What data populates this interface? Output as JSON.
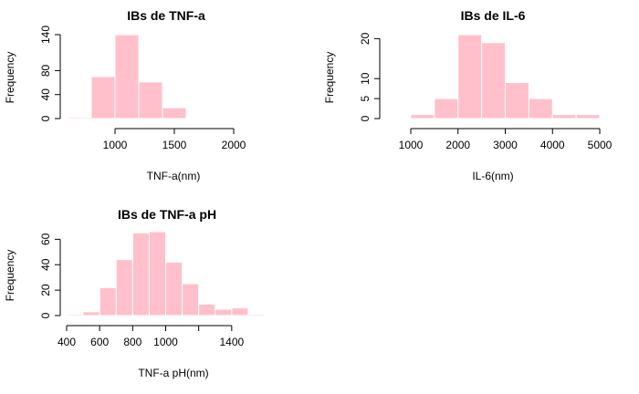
{
  "chart_data": [
    {
      "type": "bar",
      "title": "IBs de TNF-a",
      "xlabel": "TNF-a(nm)",
      "ylabel": "Frequency",
      "bar_color": "#FFC0CB",
      "bins": [
        {
          "x0": 600,
          "x1": 800,
          "count": 2
        },
        {
          "x0": 800,
          "x1": 1000,
          "count": 70
        },
        {
          "x0": 1000,
          "x1": 1200,
          "count": 140
        },
        {
          "x0": 1200,
          "x1": 1400,
          "count": 61
        },
        {
          "x0": 1400,
          "x1": 1600,
          "count": 18
        }
      ],
      "x_ticks": [
        1000,
        1500,
        2000
      ],
      "y_ticks": [
        0,
        40,
        80,
        140
      ]
    },
    {
      "type": "bar",
      "title": "IBs de IL-6",
      "xlabel": "IL-6(nm)",
      "ylabel": "Frequency",
      "bar_color": "#FFC0CB",
      "bins": [
        {
          "x0": 1000,
          "x1": 1500,
          "count": 1
        },
        {
          "x0": 1500,
          "x1": 2000,
          "count": 5
        },
        {
          "x0": 2000,
          "x1": 2500,
          "count": 21
        },
        {
          "x0": 2500,
          "x1": 3000,
          "count": 19
        },
        {
          "x0": 3000,
          "x1": 3500,
          "count": 9
        },
        {
          "x0": 3500,
          "x1": 4000,
          "count": 5
        },
        {
          "x0": 4000,
          "x1": 4500,
          "count": 1
        },
        {
          "x0": 4500,
          "x1": 5000,
          "count": 1
        }
      ],
      "x_ticks": [
        1000,
        2000,
        3000,
        4000,
        5000
      ],
      "y_ticks": [
        0,
        5,
        10,
        20
      ]
    },
    {
      "type": "bar",
      "title": "IBs de TNF-a pH",
      "xlabel": "TNF-a pH(nm)",
      "ylabel": "Frequency",
      "bar_color": "#FFC0CB",
      "bins": [
        {
          "x0": 400,
          "x1": 500,
          "count": 1
        },
        {
          "x0": 500,
          "x1": 600,
          "count": 3
        },
        {
          "x0": 600,
          "x1": 700,
          "count": 22
        },
        {
          "x0": 700,
          "x1": 800,
          "count": 44
        },
        {
          "x0": 800,
          "x1": 900,
          "count": 65
        },
        {
          "x0": 900,
          "x1": 1000,
          "count": 66
        },
        {
          "x0": 1000,
          "x1": 1100,
          "count": 42
        },
        {
          "x0": 1100,
          "x1": 1200,
          "count": 25
        },
        {
          "x0": 1200,
          "x1": 1300,
          "count": 9
        },
        {
          "x0": 1300,
          "x1": 1400,
          "count": 5
        },
        {
          "x0": 1400,
          "x1": 1500,
          "count": 6
        },
        {
          "x0": 1500,
          "x1": 1600,
          "count": 1
        }
      ],
      "x_ticks": [
        400,
        600,
        800,
        1000,
        1400
      ],
      "x_axis_marks": [
        400,
        600,
        800,
        1000,
        1200,
        1400
      ],
      "y_ticks": [
        0,
        20,
        40,
        60
      ]
    }
  ]
}
